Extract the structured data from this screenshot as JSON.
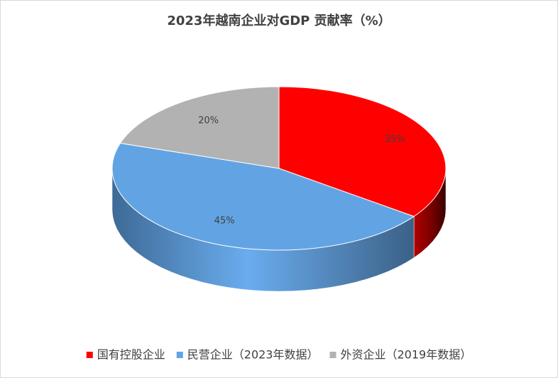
{
  "chart_data": {
    "type": "pie3d",
    "title": "2023年越南企业对GDP 贡献率（%）",
    "categories": [
      "国有控股企业",
      "民营企业（2023年数据）",
      "外资企业（2019年数据）"
    ],
    "values": [
      35,
      45,
      20
    ],
    "value_labels": [
      "35%",
      "45%",
      "20%"
    ],
    "colors": [
      "#ff0000",
      "#62a4e3",
      "#b2b2b2"
    ],
    "legend": "bottom"
  }
}
